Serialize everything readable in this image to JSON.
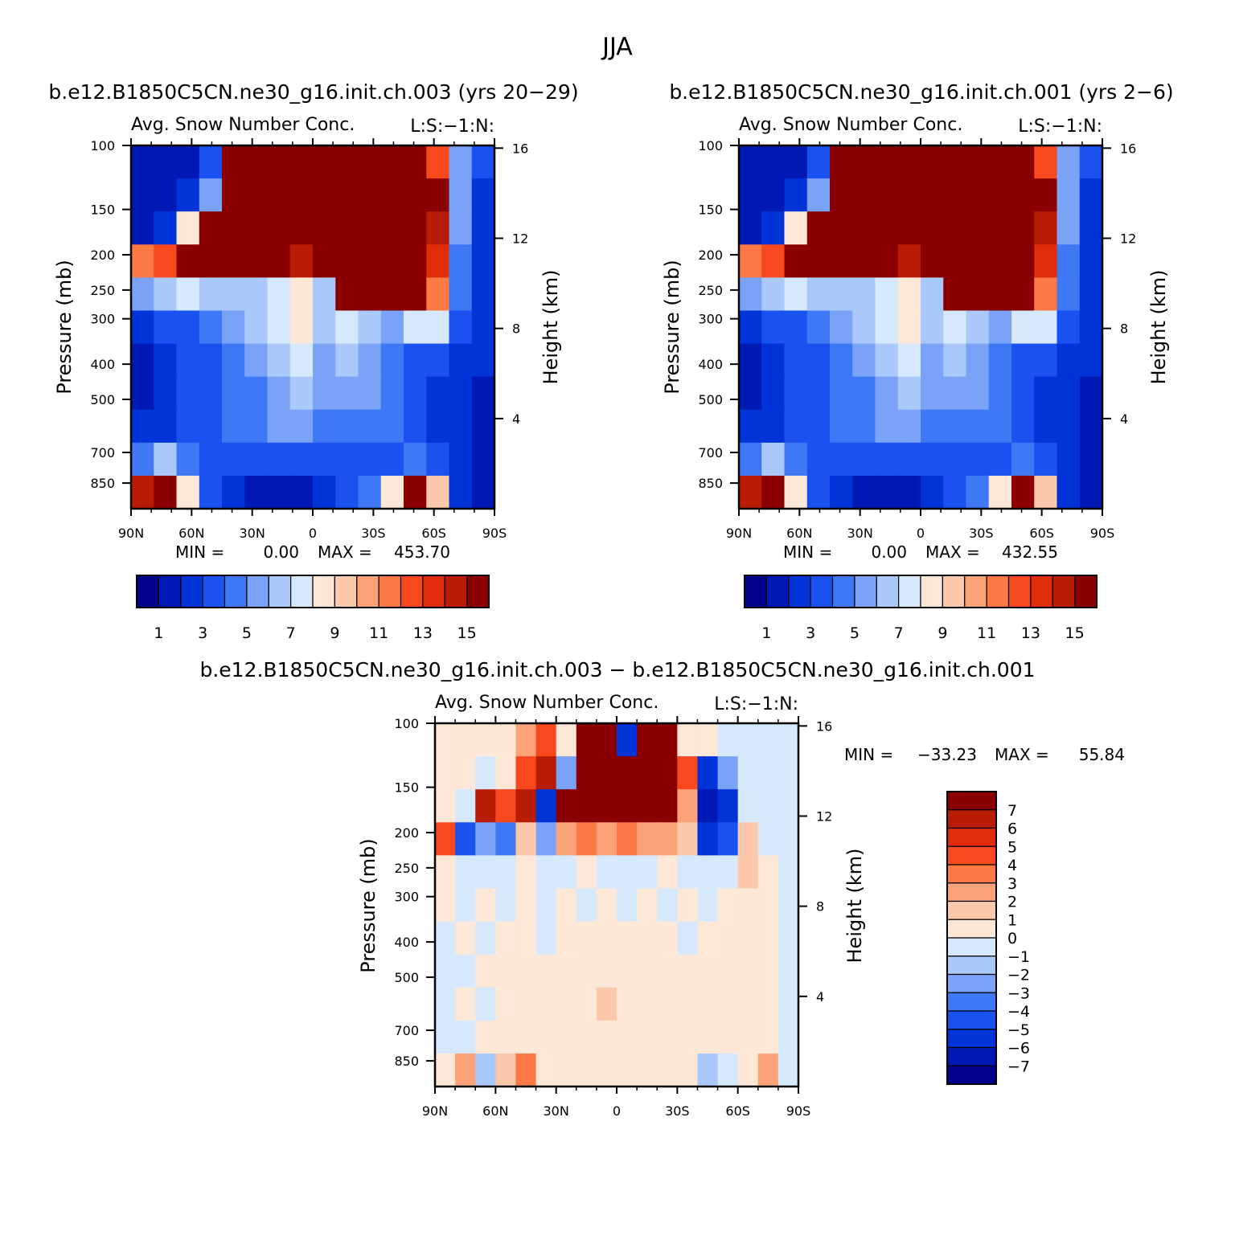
{
  "figure": {
    "title": "JJA"
  },
  "colors": {
    "seq": [
      "#00008a",
      "#0018b4",
      "#0034d8",
      "#1a52f0",
      "#3f78f4",
      "#7aa3f8",
      "#aac8fa",
      "#d6e8fc",
      "#fde8d8",
      "#fcc8ac",
      "#fca278",
      "#fc7844",
      "#f8481e",
      "#e02c08",
      "#b81c04",
      "#8a0000"
    ],
    "div": [
      "#00008a",
      "#0018b4",
      "#0034d8",
      "#1a52f0",
      "#3f78f4",
      "#7aa3f8",
      "#aac8fa",
      "#d6e8fc",
      "#fde8d8",
      "#fcc8ac",
      "#fca278",
      "#fc7844",
      "#f8481e",
      "#e02c08",
      "#b81c04",
      "#8a0000"
    ]
  },
  "chart_data": [
    {
      "type": "heatmap",
      "id": "p1",
      "title": "b.e12.B1850C5CN.ne30_g16.init.ch.003 (yrs 20-29)",
      "subtitle": "Avg. Snow Number Conc.",
      "units": "L:S:-1:N:",
      "xlabel": "",
      "ylabel": "Pressure (mb)",
      "y2label": "Height (km)",
      "x_ticks": [
        "90N",
        "60N",
        "30N",
        "0",
        "30S",
        "60S",
        "90S"
      ],
      "y_ticks": [
        "100",
        "150",
        "200",
        "250",
        "300",
        "400",
        "500",
        "700",
        "850"
      ],
      "y2_ticks": [
        "16",
        "12",
        "8",
        "4"
      ],
      "min_label": "MIN =",
      "min": "0.00",
      "max_label": "MAX =",
      "max": "453.70",
      "colorbar_labels": [
        "1",
        "3",
        "5",
        "7",
        "9",
        "11",
        "13",
        "15"
      ],
      "levels": [
        1,
        2,
        3,
        4,
        5,
        6,
        7,
        8,
        9,
        10,
        11,
        12,
        13,
        14,
        15
      ],
      "field": [
        [
          1,
          1,
          1,
          3,
          15,
          15,
          15,
          15,
          15,
          15,
          15,
          15,
          15,
          12,
          5,
          3
        ],
        [
          1,
          1,
          2,
          5,
          15,
          15,
          15,
          15,
          15,
          15,
          15,
          15,
          15,
          15,
          5,
          2
        ],
        [
          1,
          2,
          8,
          15,
          15,
          15,
          15,
          15,
          15,
          15,
          15,
          15,
          15,
          14,
          5,
          2
        ],
        [
          11,
          12,
          15,
          15,
          15,
          15,
          15,
          14,
          15,
          15,
          15,
          15,
          15,
          13,
          4,
          2
        ],
        [
          5,
          6,
          7,
          6,
          6,
          6,
          7,
          8,
          6,
          15,
          15,
          15,
          15,
          11,
          4,
          2
        ],
        [
          2,
          3,
          3,
          4,
          5,
          6,
          7,
          8,
          6,
          7,
          6,
          5,
          7,
          7,
          3,
          2
        ],
        [
          1,
          2,
          3,
          3,
          4,
          5,
          6,
          7,
          5,
          6,
          5,
          4,
          3,
          3,
          2,
          2
        ],
        [
          1,
          2,
          3,
          3,
          4,
          4,
          5,
          6,
          5,
          5,
          5,
          4,
          3,
          2,
          2,
          1
        ],
        [
          2,
          2,
          3,
          3,
          4,
          4,
          5,
          5,
          4,
          4,
          4,
          4,
          3,
          2,
          2,
          1
        ],
        [
          4,
          6,
          4,
          3,
          3,
          3,
          3,
          3,
          3,
          3,
          3,
          3,
          4,
          3,
          2,
          1
        ],
        [
          14,
          15,
          8,
          3,
          2,
          1,
          1,
          1,
          2,
          3,
          4,
          8,
          15,
          9,
          2,
          1
        ]
      ]
    },
    {
      "type": "heatmap",
      "id": "p2",
      "title": "b.e12.B1850C5CN.ne30_g16.init.ch.001 (yrs 2-6)",
      "subtitle": "Avg. Snow Number Conc.",
      "units": "L:S:-1:N:",
      "xlabel": "",
      "ylabel": "Pressure (mb)",
      "y2label": "Height (km)",
      "x_ticks": [
        "90N",
        "60N",
        "30N",
        "0",
        "30S",
        "60S",
        "90S"
      ],
      "y_ticks": [
        "100",
        "150",
        "200",
        "250",
        "300",
        "400",
        "500",
        "700",
        "850"
      ],
      "y2_ticks": [
        "16",
        "12",
        "8",
        "4"
      ],
      "min_label": "MIN =",
      "min": "0.00",
      "max_label": "MAX =",
      "max": "432.55",
      "colorbar_labels": [
        "1",
        "3",
        "5",
        "7",
        "9",
        "11",
        "13",
        "15"
      ],
      "levels": [
        1,
        2,
        3,
        4,
        5,
        6,
        7,
        8,
        9,
        10,
        11,
        12,
        13,
        14,
        15
      ],
      "field": [
        [
          1,
          1,
          1,
          3,
          15,
          15,
          15,
          15,
          15,
          15,
          15,
          15,
          15,
          12,
          5,
          3
        ],
        [
          1,
          1,
          2,
          5,
          15,
          15,
          15,
          15,
          15,
          15,
          15,
          15,
          15,
          15,
          5,
          2
        ],
        [
          1,
          2,
          8,
          15,
          15,
          15,
          15,
          15,
          15,
          15,
          15,
          15,
          15,
          14,
          5,
          2
        ],
        [
          11,
          12,
          15,
          15,
          15,
          15,
          15,
          14,
          15,
          15,
          15,
          15,
          15,
          13,
          4,
          2
        ],
        [
          5,
          6,
          7,
          6,
          6,
          6,
          7,
          8,
          6,
          15,
          15,
          15,
          15,
          11,
          4,
          2
        ],
        [
          2,
          3,
          3,
          4,
          5,
          6,
          7,
          8,
          6,
          7,
          6,
          5,
          7,
          7,
          3,
          2
        ],
        [
          1,
          2,
          3,
          3,
          4,
          5,
          6,
          7,
          5,
          6,
          5,
          4,
          3,
          3,
          2,
          2
        ],
        [
          1,
          2,
          3,
          3,
          4,
          4,
          5,
          6,
          5,
          5,
          5,
          4,
          3,
          2,
          2,
          1
        ],
        [
          2,
          2,
          3,
          3,
          4,
          4,
          5,
          5,
          4,
          4,
          4,
          4,
          3,
          2,
          2,
          1
        ],
        [
          4,
          6,
          4,
          3,
          3,
          3,
          3,
          3,
          3,
          3,
          3,
          3,
          4,
          3,
          2,
          1
        ],
        [
          14,
          15,
          8,
          3,
          2,
          1,
          1,
          1,
          2,
          3,
          4,
          8,
          15,
          9,
          2,
          1
        ]
      ]
    },
    {
      "type": "heatmap",
      "id": "p3",
      "title": "b.e12.B1850C5CN.ne30_g16.init.ch.003 - b.e12.B1850C5CN.ne30_g16.init.ch.001",
      "subtitle": "Avg. Snow Number Conc.",
      "units": "L:S:-1:N:",
      "xlabel": "",
      "ylabel": "Pressure (mb)",
      "y2label": "Height (km)",
      "x_ticks": [
        "90N",
        "60N",
        "30N",
        "0",
        "30S",
        "60S",
        "90S"
      ],
      "y_ticks": [
        "100",
        "150",
        "200",
        "250",
        "300",
        "400",
        "500",
        "700",
        "850"
      ],
      "y2_ticks": [
        "16",
        "12",
        "8",
        "4"
      ],
      "min_label": "MIN =",
      "min": "-33.23",
      "max_label": "MAX =",
      "max": "55.84",
      "colorbar_labels": [
        "7",
        "6",
        "5",
        "4",
        "3",
        "2",
        "1",
        "0",
        "-1",
        "-2",
        "-3",
        "-4",
        "-5",
        "-6",
        "-7"
      ],
      "levels": [
        -7,
        -6,
        -5,
        -4,
        -3,
        -2,
        -1,
        0,
        1,
        2,
        3,
        4,
        5,
        6,
        7
      ],
      "field": [
        [
          0.5,
          0.5,
          0.5,
          0.5,
          2,
          4,
          0.5,
          8,
          8,
          -6,
          8,
          8,
          0.5,
          0.5,
          -0.5,
          -0.5,
          -0.5,
          -0.5
        ],
        [
          0.5,
          0.5,
          -0.5,
          0.5,
          4,
          6,
          -3,
          8,
          8,
          8,
          8,
          8,
          4,
          -6,
          -3,
          -0.5,
          -0.5,
          -0.5
        ],
        [
          0.5,
          -0.5,
          6,
          4,
          6,
          -6,
          8,
          8,
          8,
          8,
          8,
          8,
          2,
          -7,
          -6,
          -0.5,
          -0.5,
          -0.5
        ],
        [
          4,
          -5,
          -3,
          -4,
          1,
          -3,
          2,
          3,
          2,
          3,
          2,
          2,
          1,
          -6,
          -5,
          1,
          -0.5,
          -0.5
        ],
        [
          0.5,
          -1,
          -0.5,
          -0.5,
          0.5,
          -0.5,
          -0.5,
          0.5,
          -0.5,
          -0.5,
          -0.5,
          0.5,
          -0.5,
          -1,
          -0.5,
          1,
          0.5,
          -0.5
        ],
        [
          0.5,
          -0.5,
          0.5,
          -0.5,
          0.5,
          -0.5,
          0.5,
          -0.5,
          0.5,
          -0.5,
          0.5,
          -0.5,
          0.5,
          -0.5,
          0.5,
          0.5,
          0.5,
          -0.5
        ],
        [
          -0.5,
          0.5,
          -0.5,
          0.5,
          0.5,
          -0.5,
          0.5,
          0.5,
          0.5,
          0.5,
          0.5,
          0.5,
          -0.5,
          0.5,
          0.5,
          0.5,
          0.5,
          -0.5
        ],
        [
          -0.5,
          -0.5,
          0.5,
          0.5,
          0.5,
          0.5,
          0.5,
          0.5,
          0.5,
          0.5,
          0.5,
          0.5,
          0.5,
          0.5,
          0.5,
          0.5,
          0.5,
          -0.5
        ],
        [
          -0.5,
          0.5,
          -0.5,
          0.5,
          0.5,
          0.5,
          0.5,
          0.5,
          1,
          0.5,
          0.5,
          0.5,
          0.5,
          0.5,
          0.5,
          0.5,
          0.5,
          -0.5
        ],
        [
          -0.5,
          -0.5,
          0.5,
          0.5,
          0.5,
          0.5,
          0.5,
          0.5,
          0.5,
          0.5,
          0.5,
          0.5,
          0.5,
          0.5,
          0.5,
          0.5,
          0.5,
          -0.5
        ],
        [
          0.5,
          2,
          -2,
          1,
          3,
          0.5,
          0.5,
          0.5,
          0.5,
          0.5,
          0.5,
          0.5,
          0.5,
          -2,
          -1,
          0.5,
          2,
          -0.5
        ]
      ]
    }
  ]
}
